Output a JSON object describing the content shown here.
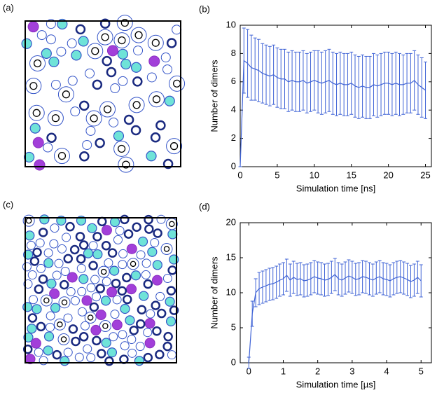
{
  "snapshots": [
    {
      "label": "(a)"
    },
    {
      "label": "(c)"
    }
  ],
  "chart_data": [
    {
      "type": "line",
      "panel_label": "(b)",
      "xlabel": "Simulation time [ns]",
      "ylabel": "Number of dimers",
      "color": "#3f63d6",
      "x": [
        0,
        0.5,
        1,
        1.5,
        2,
        2.5,
        3,
        3.5,
        4,
        4.5,
        5,
        5.5,
        6,
        6.5,
        7,
        7.5,
        8,
        8.5,
        9,
        9.5,
        10,
        10.5,
        11,
        11.5,
        12,
        12.5,
        13,
        13.5,
        14,
        14.5,
        15,
        15.5,
        16,
        16.5,
        17,
        17.5,
        18,
        18.5,
        19,
        19.5,
        20,
        20.5,
        21,
        21.5,
        22,
        22.5,
        23,
        23.5,
        24,
        24.5,
        25
      ],
      "values": [
        0,
        7.5,
        7.3,
        7.0,
        6.9,
        6.8,
        6.6,
        6.5,
        6.4,
        6.5,
        6.3,
        6.2,
        6.2,
        6.0,
        6.1,
        6.0,
        6.0,
        6.1,
        5.9,
        6.0,
        6.1,
        6.0,
        5.9,
        6.0,
        6.1,
        5.9,
        5.8,
        5.9,
        5.8,
        5.8,
        5.9,
        5.7,
        5.6,
        5.7,
        5.6,
        5.6,
        5.8,
        5.7,
        5.8,
        5.9,
        5.9,
        5.8,
        5.9,
        5.8,
        5.8,
        5.9,
        5.9,
        6.1,
        5.8,
        5.6,
        5.4
      ],
      "errors": [
        0,
        2.3,
        2.4,
        2.3,
        2.2,
        2.2,
        2.1,
        2.1,
        2.1,
        2.1,
        2.1,
        2.1,
        2.1,
        2.1,
        2.1,
        2.1,
        2.1,
        2.1,
        2.1,
        2.1,
        2.1,
        2.2,
        2.2,
        2.2,
        2.2,
        2.2,
        2.2,
        2.2,
        2.2,
        2.2,
        2.2,
        2.2,
        2.2,
        2.2,
        2.2,
        2.2,
        2.2,
        2.2,
        2.2,
        2.2,
        2.2,
        2.2,
        2.2,
        2.2,
        2.1,
        2.1,
        2.1,
        2.1,
        2.1,
        2.1,
        2.0
      ],
      "xlim": [
        0,
        25.8
      ],
      "ylim": [
        0,
        10
      ],
      "xticks": [
        0,
        5,
        10,
        15,
        20,
        25
      ],
      "yticks": [
        0,
        2,
        4,
        6,
        8,
        10
      ]
    },
    {
      "type": "line",
      "panel_label": "(d)",
      "xlabel": "Simulation time [µs]",
      "ylabel": "Number of dimers",
      "color": "#3f63d6",
      "x": [
        0,
        0.1,
        0.2,
        0.3,
        0.4,
        0.5,
        0.6,
        0.7,
        0.8,
        0.9,
        1,
        1.1,
        1.2,
        1.3,
        1.4,
        1.5,
        1.6,
        1.7,
        1.8,
        1.9,
        2,
        2.1,
        2.2,
        2.3,
        2.4,
        2.5,
        2.6,
        2.7,
        2.8,
        2.9,
        3,
        3.1,
        3.2,
        3.3,
        3.4,
        3.5,
        3.6,
        3.7,
        3.8,
        3.9,
        4,
        4.1,
        4.2,
        4.3,
        4.4,
        4.5,
        4.6,
        4.7,
        4.8,
        4.9,
        5
      ],
      "values": [
        0,
        7,
        10,
        10.6,
        10.8,
        11,
        11.2,
        11.3,
        11.5,
        11.8,
        12,
        12.5,
        11.8,
        12.2,
        11.9,
        12,
        11.7,
        11.8,
        12,
        12.3,
        12.1,
        12,
        11.8,
        11.9,
        12.2,
        12.6,
        12,
        11.8,
        12.1,
        12.4,
        12.2,
        11.9,
        12,
        12.3,
        12.2,
        12,
        11.8,
        12.1,
        12.3,
        12,
        11.9,
        11.7,
        12,
        12.2,
        12.3,
        12.1,
        11.9,
        11.6,
        11.8,
        12.2,
        11.7
      ],
      "errors": [
        0.8,
        1.8,
        2.0,
        2.3,
        2.3,
        2.3,
        2.3,
        2.3,
        2.3,
        2.3,
        2.3,
        2.3,
        2.3,
        2.3,
        2.3,
        2.3,
        2.3,
        2.3,
        2.3,
        2.3,
        2.3,
        2.3,
        2.3,
        2.3,
        2.3,
        2.3,
        2.3,
        2.3,
        2.3,
        2.3,
        2.3,
        2.3,
        2.3,
        2.3,
        2.3,
        2.3,
        2.3,
        2.3,
        2.3,
        2.3,
        2.3,
        2.3,
        2.3,
        2.3,
        2.3,
        2.3,
        2.3,
        2.3,
        2.3,
        2.3,
        2.3
      ],
      "xlim": [
        -0.25,
        5.3
      ],
      "ylim": [
        0,
        20
      ],
      "xticks": [
        0,
        1,
        2,
        3,
        4,
        5
      ],
      "yticks": [
        0,
        5,
        10,
        15,
        20
      ]
    }
  ]
}
